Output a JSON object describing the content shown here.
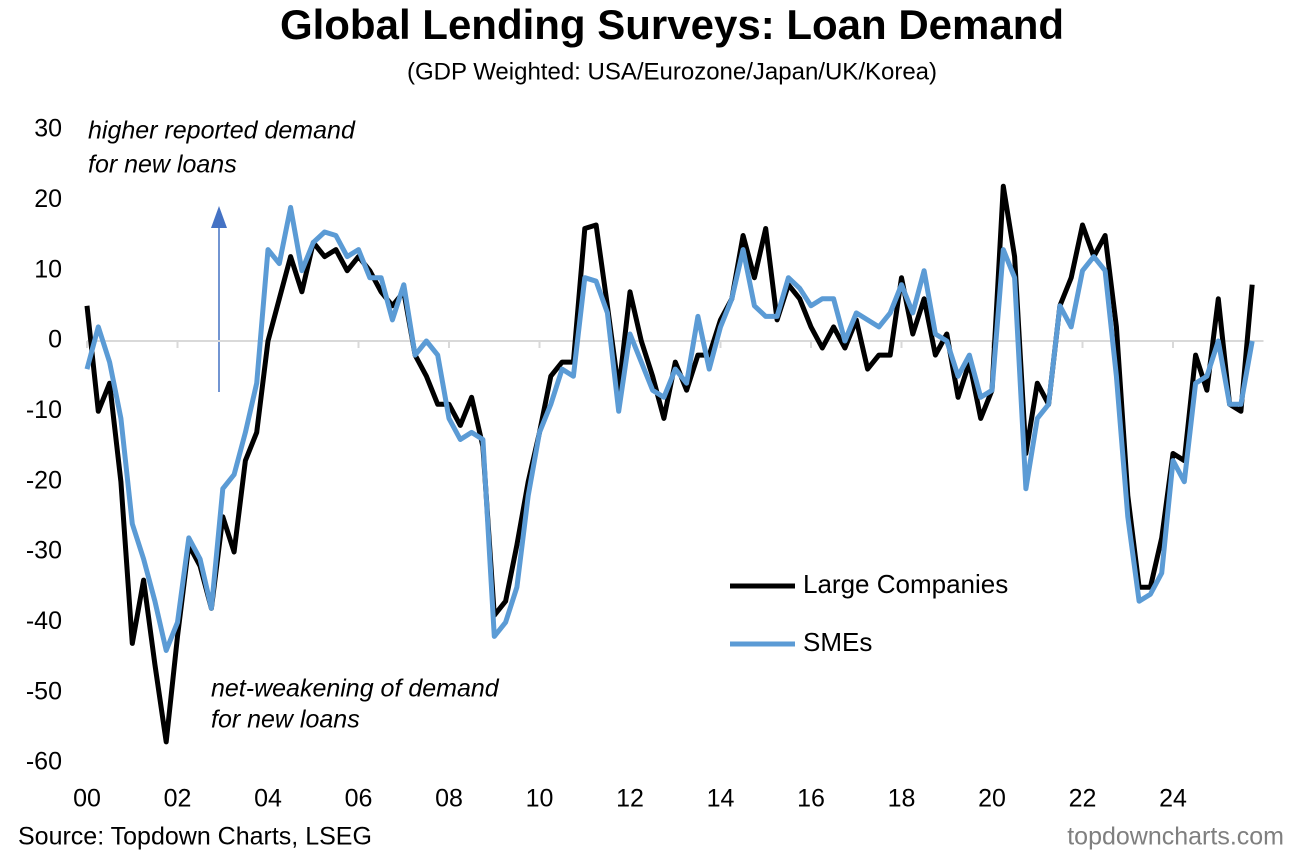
{
  "chart_data": {
    "type": "line",
    "title": "Global Lending Surveys: Loan Demand",
    "subtitle": "(GDP Weighted: USA/Eurozone/Japan/UK/Korea)",
    "annotations": [
      [
        "higher reported demand",
        "for new loans"
      ],
      [
        "net-weakening of demand",
        "for new loans"
      ]
    ],
    "source": "Source: Topdown Charts, LSEG",
    "watermark": "topdowncharts.com",
    "x": [
      0,
      0.25,
      0.5,
      0.75,
      1,
      1.25,
      1.5,
      1.75,
      2,
      2.25,
      2.5,
      2.75,
      3,
      3.25,
      3.5,
      3.75,
      4,
      4.25,
      4.5,
      4.75,
      5,
      5.25,
      5.5,
      5.75,
      6,
      6.25,
      6.5,
      6.75,
      7,
      7.25,
      7.5,
      7.75,
      8,
      8.25,
      8.5,
      8.75,
      9,
      9.25,
      9.5,
      9.75,
      10,
      10.25,
      10.5,
      10.75,
      11,
      11.25,
      11.5,
      11.75,
      12,
      12.25,
      12.5,
      12.75,
      13,
      13.25,
      13.5,
      13.75,
      14,
      14.25,
      14.5,
      14.75,
      15,
      15.25,
      15.5,
      15.75,
      16,
      16.25,
      16.5,
      16.75,
      17,
      17.25,
      17.5,
      17.75,
      18,
      18.25,
      18.5,
      18.75,
      19,
      19.25,
      19.5,
      19.75,
      20,
      20.25,
      20.5,
      20.75,
      21,
      21.25,
      21.5,
      21.75,
      22,
      22.25,
      22.5,
      22.75,
      23,
      23.25,
      23.5,
      23.75,
      24,
      24.25,
      24.5,
      24.75,
      25,
      25.25,
      25.5,
      25.75
    ],
    "series": [
      {
        "name": "Large Companies",
        "color": "#000000",
        "values": [
          5,
          -10,
          -6,
          -20,
          -43,
          -34,
          -46,
          -57,
          -42,
          -29,
          -32,
          -38,
          -25,
          -30,
          -17,
          -13,
          0,
          6,
          12,
          7,
          14,
          12,
          13,
          10,
          12,
          10,
          7,
          5,
          7,
          -2,
          -5,
          -9,
          -9,
          -12,
          -8,
          -15,
          -39,
          -37,
          -29,
          -20,
          -13,
          -5,
          -3,
          -3,
          16,
          16.5,
          5,
          -7,
          7,
          0,
          -5,
          -11,
          -3,
          -7,
          -2,
          -2,
          3,
          6,
          15,
          9,
          16,
          3,
          8,
          6,
          2,
          -1,
          2,
          -1,
          3,
          -4,
          -2,
          -2,
          9,
          1,
          6,
          -2,
          1,
          -8,
          -3,
          -11,
          -7,
          22,
          12,
          -16,
          -6,
          -9,
          5,
          9,
          16.5,
          12,
          15,
          2,
          -22,
          -35,
          -35,
          -28,
          -16,
          -17,
          -2,
          -7,
          6,
          -9,
          -10,
          8
        ]
      },
      {
        "name": "SMEs",
        "color": "#5b9bd5",
        "values": [
          -4,
          2,
          -3,
          -11,
          -26,
          -31,
          -37,
          -44,
          -40,
          -28,
          -31,
          -38,
          -21,
          -19,
          -13,
          -6,
          13,
          11,
          19,
          10,
          14,
          15.5,
          15,
          12,
          13,
          9,
          9,
          3,
          8,
          -2,
          0,
          -2,
          -11,
          -14,
          -13,
          -14,
          -42,
          -40,
          -35,
          -22,
          -13,
          -9,
          -4,
          -5,
          9,
          8.5,
          4,
          -10,
          1,
          -3,
          -7,
          -8,
          -4,
          -6,
          3.5,
          -4,
          2,
          6,
          13,
          5,
          3.5,
          3.5,
          9,
          7.5,
          5,
          6,
          6,
          0,
          4,
          3,
          2,
          4,
          8,
          4,
          10,
          1,
          0,
          -5,
          -2,
          -8,
          -7,
          13,
          9,
          -21,
          -11,
          -9,
          5,
          2,
          10,
          12,
          10,
          -5,
          -25,
          -37,
          -36,
          -33,
          -17,
          -20,
          -6,
          -5,
          0,
          -9,
          -9,
          0
        ]
      }
    ],
    "xlim": [
      0,
      26
    ],
    "xticks": [
      {
        "value": 0,
        "label": "00"
      },
      {
        "value": 2,
        "label": "02"
      },
      {
        "value": 4,
        "label": "04"
      },
      {
        "value": 6,
        "label": "06"
      },
      {
        "value": 8,
        "label": "08"
      },
      10,
      12,
      14,
      16,
      18,
      20,
      22,
      24
    ],
    "ylim": [
      -60,
      30
    ],
    "yticks": [
      -60,
      -50,
      -40,
      -30,
      -20,
      -10,
      0,
      10,
      20,
      30
    ],
    "grid": false,
    "legend": "lower right"
  }
}
